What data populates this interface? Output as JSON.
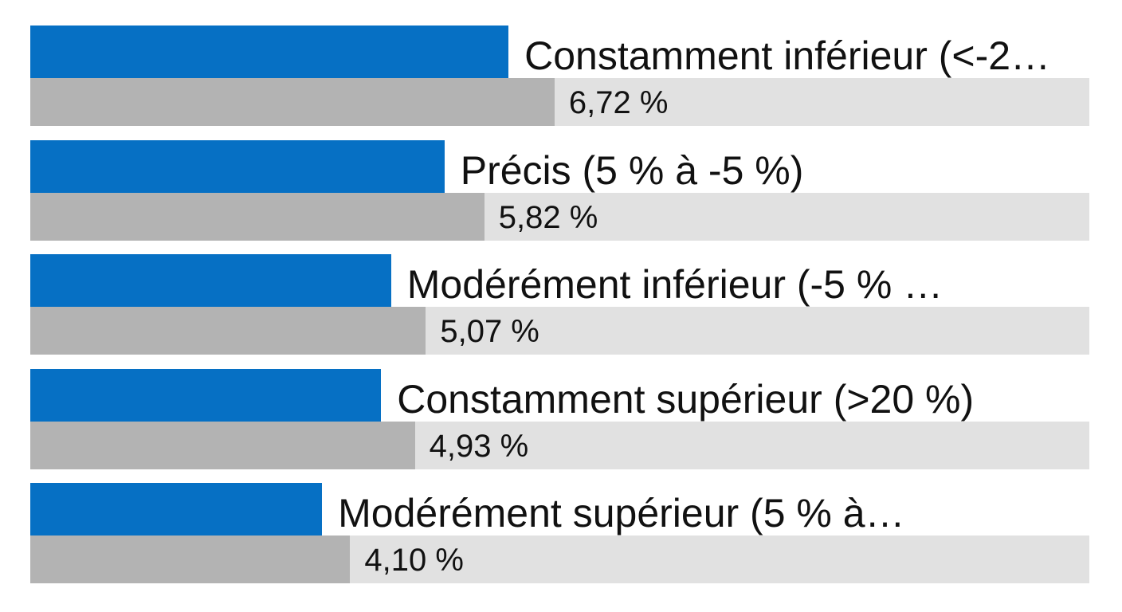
{
  "chart_data": {
    "type": "bar",
    "orientation": "horizontal",
    "categories": [
      "Constamment inférieur (<-2…",
      "Précis (5 % à -5 %)",
      "Modérément inférieur (-5 % …",
      "Constamment supérieur (>20 %)",
      "Modérément supérieur (5 % à…"
    ],
    "values": [
      6.72,
      5.82,
      5.07,
      4.93,
      4.1
    ],
    "value_labels": [
      "6,72 %",
      "5,82 %",
      "5,07 %",
      "4,93 %",
      "4,10 %"
    ],
    "title": "",
    "xlabel": "",
    "ylabel": "",
    "grid": false,
    "legend": "none",
    "colors": {
      "bar": "#0670c4",
      "track": "#e1e1e1",
      "track_fill": "#b3b3b3",
      "text": "#111111"
    }
  }
}
